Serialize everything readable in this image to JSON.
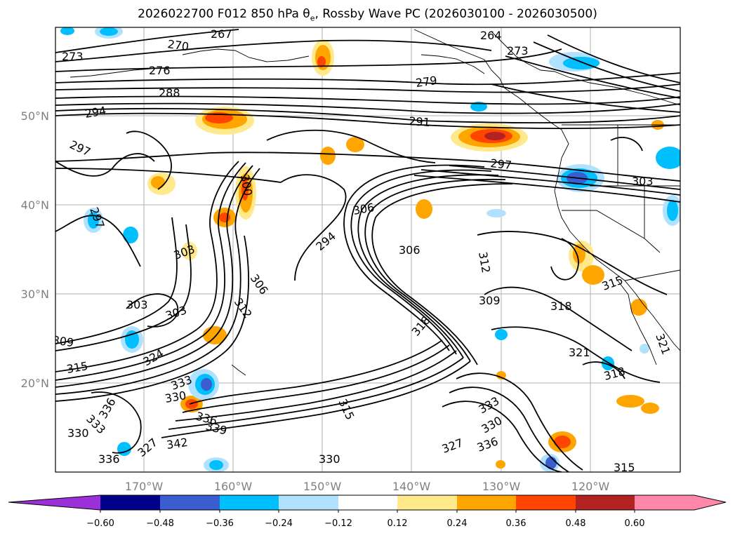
{
  "title": {
    "prefix": "2026022700 F012 850 hPa θ",
    "sub": "e",
    "suffix": ", Rossby Wave PC (2026030100 - 2026030500)"
  },
  "lat_labels": [
    "50°N",
    "40°N",
    "30°N",
    "20°N"
  ],
  "lon_labels": [
    "170°W",
    "160°W",
    "150°W",
    "140°W",
    "130°W",
    "120°W"
  ],
  "contour_labels": [
    "273",
    "267",
    "270",
    "276",
    "288",
    "294",
    "297",
    "264",
    "273",
    "279",
    "291",
    "297",
    "303",
    "300",
    "306",
    "294",
    "306",
    "312",
    "309",
    "303",
    "303",
    "306",
    "312",
    "297",
    "303",
    "309",
    "315",
    "324",
    "318",
    "321",
    "318",
    "315",
    "333",
    "330",
    "336",
    "339",
    "342",
    "330",
    "336",
    "327",
    "330",
    "333",
    "336",
    "315",
    "333",
    "330",
    "327",
    "336",
    "321",
    "318",
    "315"
  ],
  "colorbar": {
    "ticks": [
      "−0.60",
      "−0.48",
      "−0.36",
      "−0.24",
      "−0.12",
      "0.12",
      "0.24",
      "0.36",
      "0.48",
      "0.60"
    ],
    "colors": [
      "#9b30d9",
      "#00008b",
      "#3a5ed0",
      "#00bfff",
      "#b0e2ff",
      "#ffffff",
      "#ffe98a",
      "#ffa500",
      "#ff4500",
      "#b22222",
      "#ff88aa",
      "#ff88aa"
    ]
  },
  "anomaly_colors": {
    "neg_light": "#b0e2ff",
    "neg_mid": "#00bfff",
    "neg_strong": "#3a5ed0",
    "pos_light": "#ffe98a",
    "pos_mid": "#ffa500",
    "pos_strong": "#ff4500",
    "pos_max": "#b22222"
  }
}
